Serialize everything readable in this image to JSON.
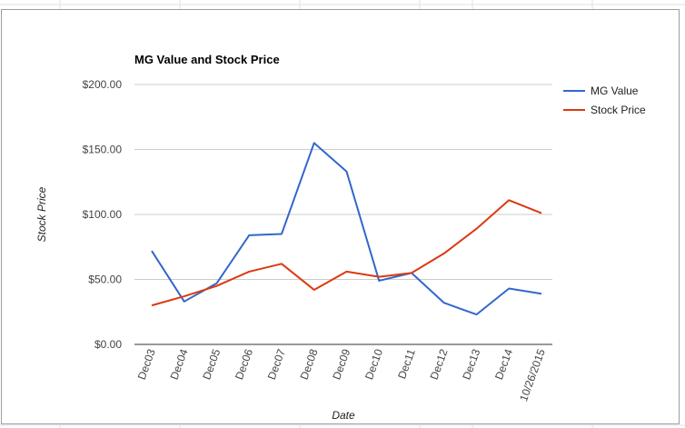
{
  "chart_data": {
    "type": "line",
    "title": "MG Value and Stock Price",
    "xlabel": "Date",
    "ylabel": "Stock Price",
    "ylim": [
      0,
      200
    ],
    "y_ticks": [
      "$0.00",
      "$50.00",
      "$100.00",
      "$150.00",
      "$200.00"
    ],
    "y_tick_values": [
      0,
      50,
      100,
      150,
      200
    ],
    "grid": true,
    "legend_position": "right",
    "categories": [
      "Dec03",
      "Dec04",
      "Dec05",
      "Dec06",
      "Dec07",
      "Dec08",
      "Dec09",
      "Dec10",
      "Dec11",
      "Dec12",
      "Dec13",
      "Dec14",
      "10/26/2015"
    ],
    "series": [
      {
        "name": "MG Value",
        "color": "#3366cc",
        "values": [
          72,
          33,
          47,
          84,
          85,
          155,
          133,
          49,
          55,
          32,
          23,
          43,
          39
        ]
      },
      {
        "name": "Stock Price",
        "color": "#dc3912",
        "values": [
          30,
          37,
          45,
          56,
          62,
          42,
          56,
          52,
          55,
          70,
          89,
          111,
          101
        ]
      }
    ]
  }
}
